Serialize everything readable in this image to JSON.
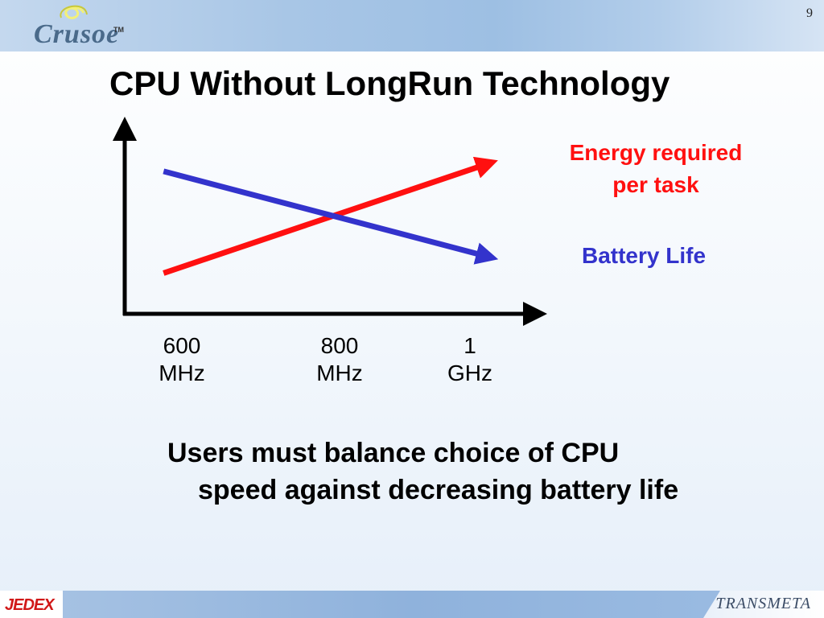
{
  "slide": {
    "number": "9",
    "title": "CPU Without LongRun Technology",
    "body_line1": "Users must balance choice of CPU",
    "body_line2": "speed against decreasing battery life"
  },
  "logos": {
    "header": "Crusoe",
    "header_tm": "TM",
    "footer_left": "JEDEX",
    "footer_right": "TRANSMETA"
  },
  "colors": {
    "energy": "#ff1010",
    "battery": "#3333cc",
    "axis": "#000000"
  },
  "chart_data": {
    "type": "line",
    "title": "",
    "xlabel": "",
    "ylabel": "",
    "x_ticks": [
      {
        "value": "600",
        "unit": "MHz"
      },
      {
        "value": "800",
        "unit": "MHz"
      },
      {
        "value": "1",
        "unit": "GHz"
      }
    ],
    "xlim": [
      500,
      1140
    ],
    "ylim": [
      0,
      10
    ],
    "series": [
      {
        "name": "Energy required per task",
        "name_line1": "Energy required",
        "name_line2": "per task",
        "x": [
          560,
          1060
        ],
        "y": [
          2.2,
          8.1
        ],
        "color": "#ff1010"
      },
      {
        "name": "Battery Life",
        "x": [
          560,
          1060
        ],
        "y": [
          7.7,
          3.1
        ],
        "color": "#3333cc"
      }
    ]
  }
}
